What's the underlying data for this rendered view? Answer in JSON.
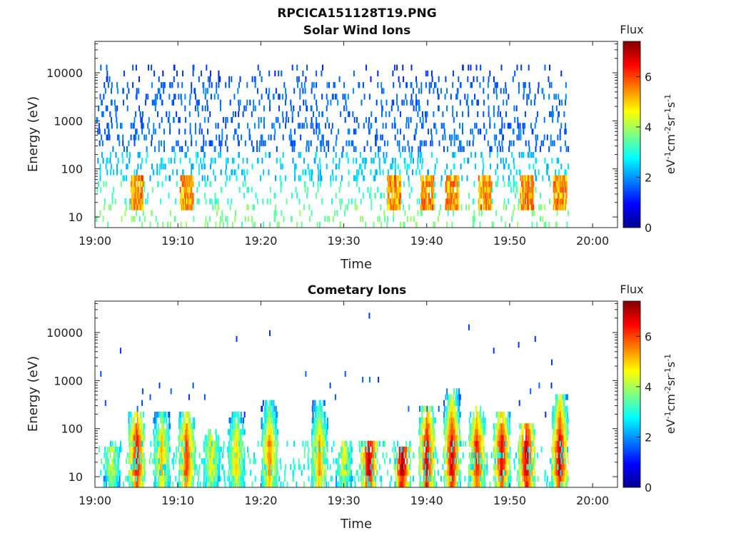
{
  "figure_title": "RPCICA151128T19.PNG",
  "chart_data": [
    {
      "type": "heatmap",
      "title": "Solar Wind Ions",
      "xlabel": "Time",
      "ylabel": "Energy (eV)",
      "x_ticks": [
        "19:00",
        "19:10",
        "19:20",
        "19:30",
        "19:40",
        "19:50",
        "20:00"
      ],
      "y_ticks": [
        "10",
        "100",
        "1000",
        "10000"
      ],
      "y_scale": "log",
      "xlim": [
        "19:00",
        "20:03"
      ],
      "ylim": [
        6,
        45000
      ],
      "data_end": "19:57",
      "colorbar": {
        "label": "Flux",
        "unit": "eV-1cm-2sr-1s-1",
        "range": [
          0,
          7.4
        ],
        "ticks": [
          "0",
          "2",
          "4",
          "6"
        ]
      },
      "notes_visible": "Sparse blue points (flux 1-2) spread 100 eV - 15000 eV; cyan/green bands 10-100 eV; short orange/yellow bursts near 20-40 eV around 19:05, 19:11, 19:40, 19:43, 19:47"
    },
    {
      "type": "heatmap",
      "title": "Cometary Ions",
      "xlabel": "Time",
      "ylabel": "Energy (eV)",
      "x_ticks": [
        "19:00",
        "19:10",
        "19:20",
        "19:30",
        "19:40",
        "19:50",
        "20:00"
      ],
      "y_ticks": [
        "10",
        "100",
        "1000",
        "10000"
      ],
      "y_scale": "log",
      "xlim": [
        "19:00",
        "20:03"
      ],
      "ylim": [
        6,
        45000
      ],
      "data_end": "19:57",
      "colorbar": {
        "label": "Flux",
        "unit": "eV-1cm-2sr-1s-1",
        "range": [
          0,
          7.4
        ],
        "ticks": [
          "0",
          "2",
          "4",
          "6"
        ]
      },
      "bursts": [
        {
          "t": "19:02",
          "top": 40,
          "peak": 4.5
        },
        {
          "t": "19:05",
          "top": 250,
          "peak": 6.6
        },
        {
          "t": "19:08",
          "top": 200,
          "peak": 5.2
        },
        {
          "t": "19:11",
          "top": 250,
          "peak": 6.2
        },
        {
          "t": "19:14",
          "top": 100,
          "peak": 4.8
        },
        {
          "t": "19:17",
          "top": 200,
          "peak": 5.0
        },
        {
          "t": "19:21",
          "top": 400,
          "peak": 5.6
        },
        {
          "t": "19:27",
          "top": 350,
          "peak": 5.4
        },
        {
          "t": "19:30",
          "top": 60,
          "peak": 4.6
        },
        {
          "t": "19:33",
          "top": 60,
          "peak": 7.0
        },
        {
          "t": "19:37",
          "top": 40,
          "peak": 7.2
        },
        {
          "t": "19:40",
          "top": 300,
          "peak": 6.8
        },
        {
          "t": "19:43",
          "top": 700,
          "peak": 6.9
        },
        {
          "t": "19:46",
          "top": 300,
          "peak": 6.4
        },
        {
          "t": "19:49",
          "top": 250,
          "peak": 6.7
        },
        {
          "t": "19:52",
          "top": 120,
          "peak": 7.0
        },
        {
          "t": "19:56",
          "top": 500,
          "peak": 7.0
        }
      ],
      "isolated_points": [
        {
          "t": "19:03",
          "e": 3800
        },
        {
          "t": "19:17",
          "e": 5600
        },
        {
          "t": "19:21",
          "e": 7700
        },
        {
          "t": "19:33",
          "e": 18000
        },
        {
          "t": "19:45",
          "e": 10000
        },
        {
          "t": "19:48",
          "e": 4200
        },
        {
          "t": "19:51",
          "e": 4500
        },
        {
          "t": "19:53",
          "e": 6500
        },
        {
          "t": "19:55",
          "e": 2200
        }
      ]
    }
  ]
}
